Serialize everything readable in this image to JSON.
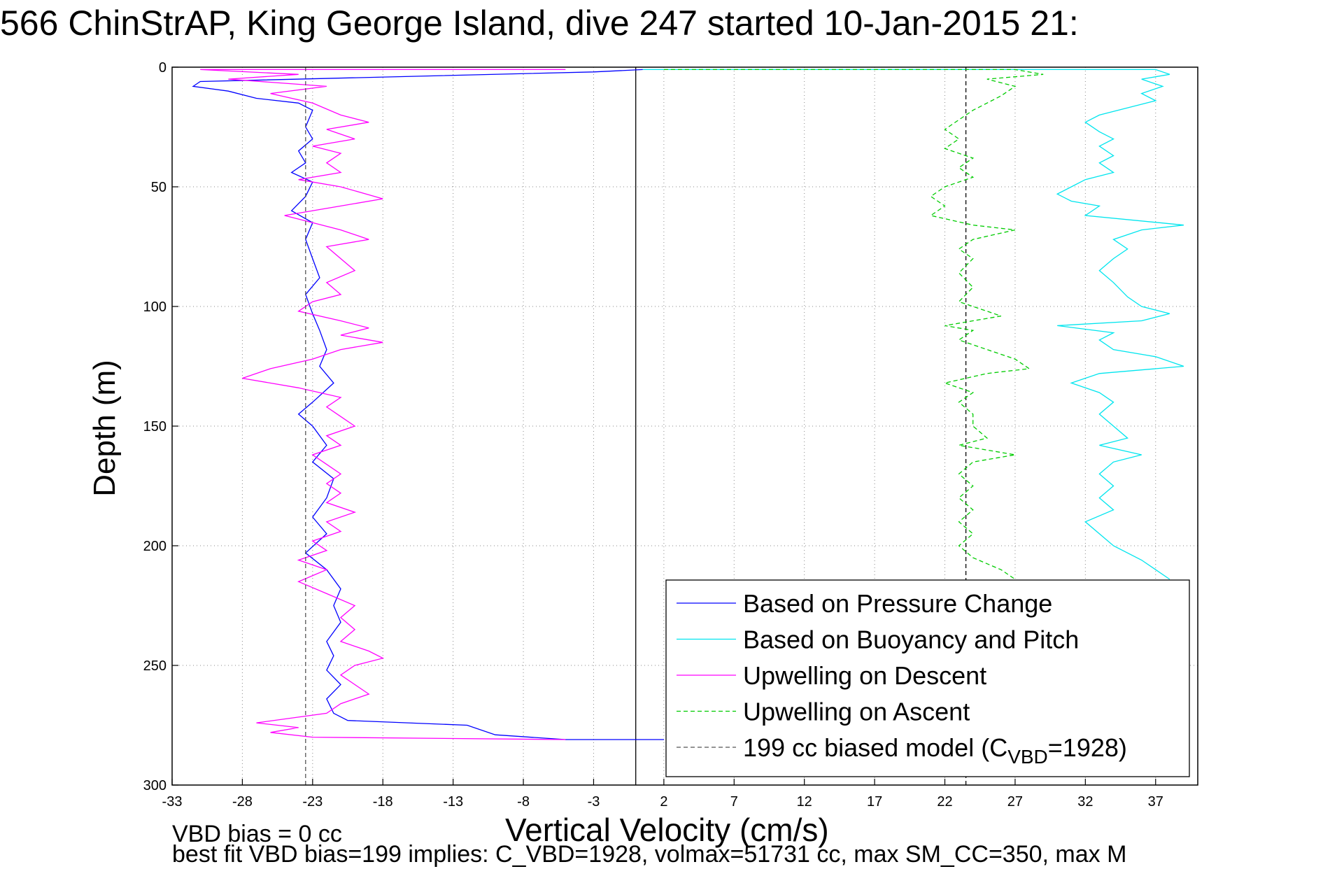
{
  "chart_data": {
    "type": "line",
    "title": "566 ChinStrAP, King George Island, dive 247 started 10-Jan-2015 21:",
    "xlabel": "Vertical Velocity (cm/s)",
    "ylabel": "Depth (m)",
    "xlim": [
      -33,
      40
    ],
    "ylim": [
      0,
      300
    ],
    "y_reversed": true,
    "grid": true,
    "x_ticks": [
      "-33",
      "-28",
      "-23",
      "-18",
      "-13",
      "-8",
      "-3",
      "2",
      "7",
      "12",
      "17",
      "22",
      "27",
      "32",
      "37"
    ],
    "y_ticks": [
      "0",
      "50",
      "100",
      "150",
      "200",
      "250",
      "300"
    ],
    "legend_position": "bottom-right",
    "series": [
      {
        "name": "Based on Pressure Change",
        "color": "#0000ff",
        "style": "solid",
        "points": [
          [
            0.5,
            1
          ],
          [
            -3,
            2
          ],
          [
            -31,
            6
          ],
          [
            -31.5,
            8
          ],
          [
            -29,
            10
          ],
          [
            -27,
            13
          ],
          [
            -24,
            15
          ],
          [
            -23,
            18
          ],
          [
            -23.5,
            25
          ],
          [
            -23,
            30
          ],
          [
            -24,
            35
          ],
          [
            -23.5,
            40
          ],
          [
            -24.5,
            44
          ],
          [
            -23,
            48
          ],
          [
            -23.5,
            54
          ],
          [
            -24.5,
            60
          ],
          [
            -23,
            65
          ],
          [
            -23.5,
            72
          ],
          [
            -23,
            80
          ],
          [
            -22.5,
            88
          ],
          [
            -23.5,
            95
          ],
          [
            -23,
            103
          ],
          [
            -22.5,
            110
          ],
          [
            -22,
            118
          ],
          [
            -22.5,
            125
          ],
          [
            -21.5,
            132
          ],
          [
            -23,
            140
          ],
          [
            -24,
            145
          ],
          [
            -23,
            150
          ],
          [
            -22,
            158
          ],
          [
            -23,
            165
          ],
          [
            -21.5,
            172
          ],
          [
            -22,
            180
          ],
          [
            -23,
            188
          ],
          [
            -22,
            195
          ],
          [
            -23.5,
            203
          ],
          [
            -22,
            210
          ],
          [
            -21,
            218
          ],
          [
            -21.5,
            225
          ],
          [
            -21,
            232
          ],
          [
            -22,
            240
          ],
          [
            -21.5,
            246
          ],
          [
            -22,
            252
          ],
          [
            -21,
            258
          ],
          [
            -22,
            264
          ],
          [
            -21.5,
            270
          ],
          [
            -20.5,
            273
          ],
          [
            -12,
            275
          ],
          [
            -10,
            279
          ],
          [
            -5,
            281
          ],
          [
            2,
            281
          ]
        ]
      },
      {
        "name": "Based on Buoyancy and Pitch",
        "color": "#00e5ee",
        "style": "solid",
        "points": [
          [
            0.5,
            1
          ],
          [
            37,
            1
          ],
          [
            38,
            3
          ],
          [
            36,
            5
          ],
          [
            37.5,
            8
          ],
          [
            36,
            11
          ],
          [
            37,
            14
          ],
          [
            35,
            17
          ],
          [
            33,
            20
          ],
          [
            32,
            23
          ],
          [
            33,
            27
          ],
          [
            34,
            30
          ],
          [
            33,
            33
          ],
          [
            34,
            37
          ],
          [
            33,
            40
          ],
          [
            34,
            44
          ],
          [
            32,
            47
          ],
          [
            31,
            50
          ],
          [
            30,
            53
          ],
          [
            31,
            56
          ],
          [
            33,
            58
          ],
          [
            32,
            62
          ],
          [
            39,
            66
          ],
          [
            36,
            68
          ],
          [
            34,
            72
          ],
          [
            35,
            76
          ],
          [
            34,
            80
          ],
          [
            33,
            85
          ],
          [
            34,
            90
          ],
          [
            35,
            96
          ],
          [
            36,
            100
          ],
          [
            38,
            103
          ],
          [
            36,
            106
          ],
          [
            30,
            108
          ],
          [
            34,
            111
          ],
          [
            33,
            114
          ],
          [
            34,
            118
          ],
          [
            37,
            121
          ],
          [
            39,
            125
          ],
          [
            33,
            128
          ],
          [
            31,
            132
          ],
          [
            33,
            136
          ],
          [
            34,
            140
          ],
          [
            33,
            145
          ],
          [
            34,
            150
          ],
          [
            35,
            155
          ],
          [
            33,
            158
          ],
          [
            36,
            162
          ],
          [
            34,
            165
          ],
          [
            33,
            170
          ],
          [
            34,
            175
          ],
          [
            33,
            180
          ],
          [
            34,
            185
          ],
          [
            32,
            190
          ],
          [
            33,
            195
          ],
          [
            34,
            200
          ],
          [
            36,
            206
          ],
          [
            37,
            210
          ],
          [
            38,
            214
          ]
        ]
      },
      {
        "name": "Upwelling on Descent",
        "color": "#ff00ff",
        "style": "solid",
        "points": [
          [
            -5,
            1
          ],
          [
            -31,
            1
          ],
          [
            -24,
            3
          ],
          [
            -29,
            5
          ],
          [
            -22,
            8
          ],
          [
            -26,
            11
          ],
          [
            -23,
            15
          ],
          [
            -21,
            20
          ],
          [
            -19,
            23
          ],
          [
            -22,
            26
          ],
          [
            -20,
            30
          ],
          [
            -23,
            33
          ],
          [
            -21,
            36
          ],
          [
            -22,
            40
          ],
          [
            -21,
            44
          ],
          [
            -24,
            47
          ],
          [
            -21,
            50
          ],
          [
            -18,
            55
          ],
          [
            -21,
            58
          ],
          [
            -25,
            62
          ],
          [
            -23,
            65
          ],
          [
            -21,
            68
          ],
          [
            -19,
            72
          ],
          [
            -22,
            75
          ],
          [
            -21,
            80
          ],
          [
            -20,
            85
          ],
          [
            -22,
            90
          ],
          [
            -21,
            95
          ],
          [
            -23,
            98
          ],
          [
            -24,
            102
          ],
          [
            -21,
            106
          ],
          [
            -19,
            109
          ],
          [
            -21,
            112
          ],
          [
            -18,
            115
          ],
          [
            -21,
            118
          ],
          [
            -23,
            122
          ],
          [
            -26,
            126
          ],
          [
            -28,
            130
          ],
          [
            -24,
            134
          ],
          [
            -21,
            138
          ],
          [
            -22,
            142
          ],
          [
            -21,
            146
          ],
          [
            -20,
            150
          ],
          [
            -22,
            154
          ],
          [
            -21,
            158
          ],
          [
            -23,
            162
          ],
          [
            -22,
            166
          ],
          [
            -21,
            170
          ],
          [
            -22,
            174
          ],
          [
            -21,
            178
          ],
          [
            -22,
            182
          ],
          [
            -20,
            186
          ],
          [
            -22,
            190
          ],
          [
            -21,
            194
          ],
          [
            -23,
            198
          ],
          [
            -22,
            202
          ],
          [
            -24,
            206
          ],
          [
            -22,
            210
          ],
          [
            -24,
            215
          ],
          [
            -22,
            220
          ],
          [
            -20,
            225
          ],
          [
            -21,
            230
          ],
          [
            -20,
            235
          ],
          [
            -21,
            240
          ],
          [
            -19,
            244
          ],
          [
            -18,
            247
          ],
          [
            -20,
            250
          ],
          [
            -21,
            254
          ],
          [
            -20,
            258
          ],
          [
            -19,
            262
          ],
          [
            -21,
            266
          ],
          [
            -22,
            270
          ],
          [
            -27,
            274
          ],
          [
            -24,
            276
          ],
          [
            -26,
            278
          ],
          [
            -23,
            280
          ],
          [
            -5,
            281
          ]
        ]
      },
      {
        "name": "Upwelling on Ascent",
        "color": "#00cc00",
        "style": "dashed",
        "points": [
          [
            2,
            1
          ],
          [
            27,
            1
          ],
          [
            29,
            3
          ],
          [
            25,
            5
          ],
          [
            27,
            8
          ],
          [
            26,
            12
          ],
          [
            25,
            15
          ],
          [
            24,
            18
          ],
          [
            23,
            22
          ],
          [
            22,
            26
          ],
          [
            23,
            30
          ],
          [
            22,
            34
          ],
          [
            24,
            38
          ],
          [
            23,
            42
          ],
          [
            24,
            46
          ],
          [
            22,
            50
          ],
          [
            21,
            54
          ],
          [
            22,
            58
          ],
          [
            21,
            62
          ],
          [
            24,
            66
          ],
          [
            27,
            68
          ],
          [
            24,
            72
          ],
          [
            23,
            76
          ],
          [
            24,
            80
          ],
          [
            23,
            86
          ],
          [
            24,
            92
          ],
          [
            23,
            98
          ],
          [
            25,
            102
          ],
          [
            26,
            104
          ],
          [
            24,
            106
          ],
          [
            22,
            108
          ],
          [
            24,
            110
          ],
          [
            23,
            114
          ],
          [
            25,
            118
          ],
          [
            27,
            122
          ],
          [
            28,
            126
          ],
          [
            25,
            128
          ],
          [
            22,
            132
          ],
          [
            24,
            136
          ],
          [
            23,
            140
          ],
          [
            24,
            145
          ],
          [
            24,
            150
          ],
          [
            25,
            155
          ],
          [
            23,
            158
          ],
          [
            27,
            162
          ],
          [
            24,
            165
          ],
          [
            23,
            170
          ],
          [
            24,
            175
          ],
          [
            23,
            180
          ],
          [
            24,
            185
          ],
          [
            23,
            190
          ],
          [
            24,
            195
          ],
          [
            23,
            200
          ],
          [
            24,
            205
          ],
          [
            26,
            210
          ],
          [
            27,
            214
          ]
        ]
      },
      {
        "name": "199 cc biased model (C",
        "name_sub": "VBD",
        "name_suffix": "=1928)",
        "color": "#555555",
        "style": "dashed",
        "points": [
          [
            -23.5,
            0
          ],
          [
            -23.5,
            300
          ]
        ]
      }
    ],
    "extra_lines": [
      {
        "color": "#000000",
        "style": "solid",
        "points": [
          [
            0,
            0
          ],
          [
            0,
            300
          ]
        ]
      },
      {
        "color": "#000000",
        "style": "dashed",
        "points": [
          [
            23.5,
            0
          ],
          [
            23.5,
            300
          ]
        ]
      }
    ]
  },
  "notes": {
    "line1": "VBD bias = 0 cc",
    "line2": "best fit VBD bias=199 implies: C_VBD=1928, volmax=51731 cc, max SM_CC=350, max M"
  }
}
